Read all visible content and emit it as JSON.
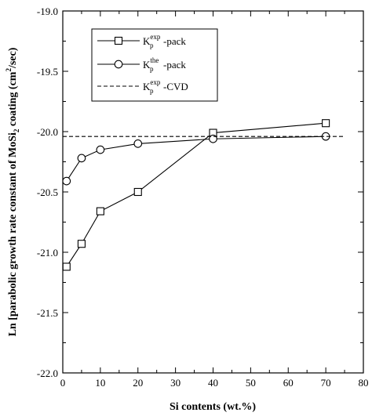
{
  "chart_data": {
    "type": "line",
    "xlabel": "Si contents (wt.%)",
    "ylabel": {
      "main": "Ln [parabolic growth rate constant of MoSi",
      "sub": "2",
      "mid": " coating (cm",
      "sup": "2",
      "end": "/sec)"
    },
    "xlim": [
      0,
      80
    ],
    "ylim": [
      -22.0,
      -19.0
    ],
    "xticks": [
      0,
      10,
      20,
      30,
      40,
      50,
      60,
      70,
      80
    ],
    "xtick_labels": [
      "0",
      "10",
      "20",
      "30",
      "40",
      "50",
      "60",
      "70",
      "80"
    ],
    "yticks": [
      -22.0,
      -21.5,
      -21.0,
      -20.5,
      -20.0,
      -19.5,
      -19.0
    ],
    "ytick_labels": [
      "-22.0",
      "-21.5",
      "-21.0",
      "-20.5",
      "-20.0",
      "-19.5",
      "-19.0"
    ],
    "grid": false,
    "legend_position": "top-center",
    "series": [
      {
        "name": "Kpexp-pack",
        "legend": {
          "base": "K",
          "sub": "p",
          "sup": "exp",
          "suffix": "-pack"
        },
        "marker": "square",
        "line": "solid",
        "x": [
          1,
          5,
          10,
          20,
          40,
          70
        ],
        "y": [
          -21.12,
          -20.93,
          -20.66,
          -20.5,
          -20.01,
          -19.93
        ]
      },
      {
        "name": "Kpthe-pack",
        "legend": {
          "base": "K",
          "sub": "p",
          "sup": "the",
          "suffix": "-pack"
        },
        "marker": "circle",
        "line": "solid",
        "x": [
          1,
          5,
          10,
          20,
          40,
          70
        ],
        "y": [
          -20.41,
          -20.22,
          -20.15,
          -20.1,
          -20.06,
          -20.04
        ]
      },
      {
        "name": "Kpexp-CVD",
        "legend": {
          "base": "K",
          "sub": "p",
          "sup": "exp",
          "suffix": "-CVD"
        },
        "marker": "none",
        "line": "dashed",
        "x": [
          0,
          75
        ],
        "y": [
          -20.04,
          -20.04
        ]
      }
    ]
  }
}
